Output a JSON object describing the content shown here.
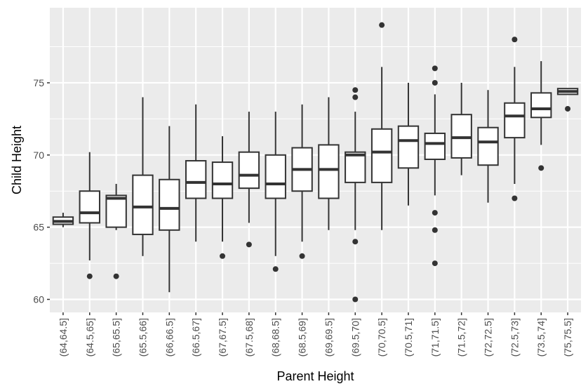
{
  "chart_data": {
    "type": "box",
    "title": "",
    "xlabel": "Parent Height",
    "ylabel": "Child Height",
    "ylim": [
      59.1,
      80.2
    ],
    "y_ticks": [
      60,
      65,
      70,
      75
    ],
    "grid": true,
    "categories": [
      "(64,64.5]",
      "(64.5,65]",
      "(65,65.5]",
      "(65.5,66]",
      "(66,66.5]",
      "(66.5,67]",
      "(67,67.5]",
      "(67.5,68]",
      "(68,68.5]",
      "(68.5,69]",
      "(69,69.5]",
      "(69.5,70]",
      "(70,70.5]",
      "(70.5,71]",
      "(71,71.5]",
      "(71.5,72]",
      "(72,72.5]",
      "(72.5,73]",
      "(73.5,74]",
      "(75,75.5]"
    ],
    "boxes": [
      {
        "lw": 65.0,
        "q1": 65.2,
        "median": 65.4,
        "q3": 65.7,
        "uw": 66.0,
        "outliers": []
      },
      {
        "lw": 62.7,
        "q1": 65.3,
        "median": 66.0,
        "q3": 67.5,
        "uw": 70.2,
        "outliers": [
          61.6
        ]
      },
      {
        "lw": 64.8,
        "q1": 65.0,
        "median": 67.0,
        "q3": 67.2,
        "uw": 68.0,
        "outliers": [
          61.6
        ]
      },
      {
        "lw": 63.0,
        "q1": 64.5,
        "median": 66.4,
        "q3": 68.6,
        "uw": 74.0,
        "outliers": []
      },
      {
        "lw": 60.5,
        "q1": 64.8,
        "median": 66.3,
        "q3": 68.3,
        "uw": 72.0,
        "outliers": []
      },
      {
        "lw": 64.0,
        "q1": 67.0,
        "median": 68.1,
        "q3": 69.6,
        "uw": 73.5,
        "outliers": []
      },
      {
        "lw": 64.0,
        "q1": 67.0,
        "median": 68.0,
        "q3": 69.5,
        "uw": 71.3,
        "outliers": [
          63.0
        ]
      },
      {
        "lw": 65.3,
        "q1": 67.7,
        "median": 68.6,
        "q3": 70.2,
        "uw": 73.0,
        "outliers": [
          63.8
        ]
      },
      {
        "lw": 63.0,
        "q1": 67.0,
        "median": 68.0,
        "q3": 70.0,
        "uw": 73.0,
        "outliers": [
          62.1
        ]
      },
      {
        "lw": 64.0,
        "q1": 67.5,
        "median": 69.0,
        "q3": 70.5,
        "uw": 73.5,
        "outliers": [
          63.0
        ]
      },
      {
        "lw": 64.8,
        "q1": 67.0,
        "median": 69.0,
        "q3": 70.7,
        "uw": 74.0,
        "outliers": []
      },
      {
        "lw": 64.8,
        "q1": 68.1,
        "median": 70.0,
        "q3": 70.2,
        "uw": 73.0,
        "outliers": [
          64.0,
          60.0,
          74.0,
          74.5
        ]
      },
      {
        "lw": 64.8,
        "q1": 68.1,
        "median": 70.2,
        "q3": 71.8,
        "uw": 76.1,
        "outliers": [
          79.0
        ]
      },
      {
        "lw": 66.5,
        "q1": 69.1,
        "median": 71.0,
        "q3": 72.0,
        "uw": 75.0,
        "outliers": []
      },
      {
        "lw": 67.2,
        "q1": 69.7,
        "median": 70.8,
        "q3": 71.5,
        "uw": 74.2,
        "outliers": [
          66.0,
          64.8,
          62.5,
          75.0,
          76.0
        ]
      },
      {
        "lw": 68.6,
        "q1": 69.8,
        "median": 71.2,
        "q3": 72.8,
        "uw": 75.0,
        "outliers": []
      },
      {
        "lw": 66.7,
        "q1": 69.3,
        "median": 70.9,
        "q3": 71.9,
        "uw": 74.5,
        "outliers": []
      },
      {
        "lw": 68.0,
        "q1": 71.2,
        "median": 72.7,
        "q3": 73.6,
        "uw": 76.1,
        "outliers": [
          67.0,
          78.0
        ]
      },
      {
        "lw": 70.7,
        "q1": 72.6,
        "median": 73.2,
        "q3": 74.3,
        "uw": 76.5,
        "outliers": [
          69.1
        ]
      },
      {
        "lw": 74.2,
        "q1": 74.2,
        "median": 74.4,
        "q3": 74.6,
        "uw": 74.6,
        "outliers": [
          73.2
        ]
      }
    ],
    "colors": {
      "panel_bg": "#ebebeb",
      "grid": "#ffffff",
      "box_fill": "#ffffff",
      "box_stroke": "#333333",
      "tick_text": "#4d4d4d",
      "title_text": "#000000"
    }
  }
}
